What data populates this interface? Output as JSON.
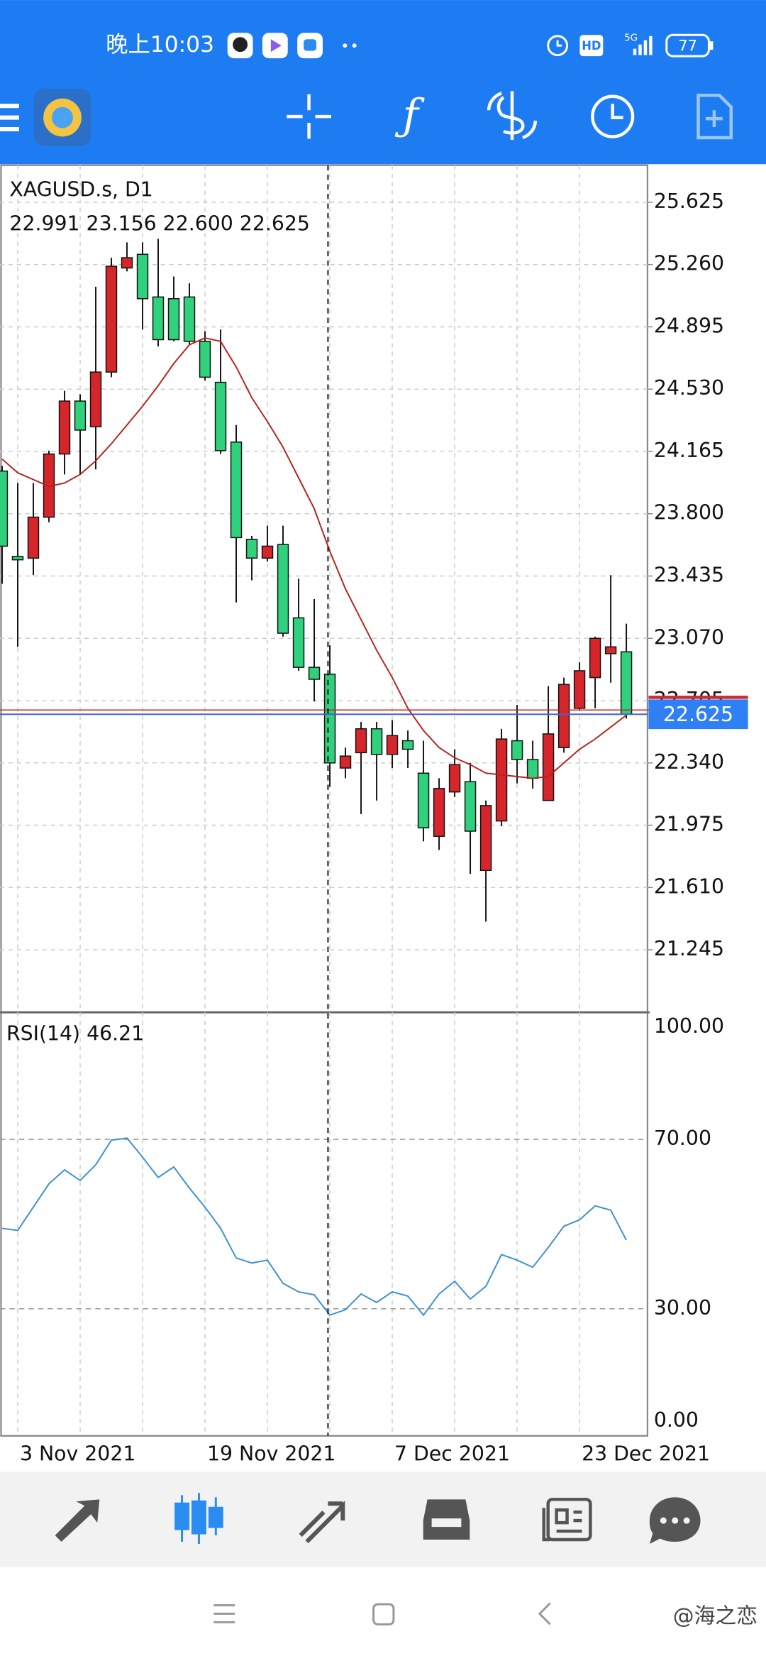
{
  "status_bar": {
    "time": "晚上10:03",
    "network": "5G",
    "battery": "77"
  },
  "chart": {
    "type": "candlestick",
    "symbol": "XAGUSD.s, D1",
    "ohlc_header": "22.991 23.156 22.600 22.625",
    "categories": [
      null,
      "3 Nov 2021",
      null,
      null,
      null,
      null,
      null,
      null,
      null,
      null,
      null,
      null,
      null,
      "19 Nov 2021",
      null,
      null,
      null,
      null,
      null,
      null,
      null,
      null,
      null,
      null,
      null,
      "7 Dec 2021",
      null,
      null,
      null,
      null,
      null,
      null,
      null,
      null,
      null,
      null,
      null,
      "23 Dec 2021",
      null,
      null,
      null
    ],
    "open": [
      24.05,
      23.55,
      23.54,
      23.78,
      24.15,
      24.46,
      24.31,
      24.63,
      25.24,
      25.32,
      25.07,
      25.06,
      25.07,
      24.81,
      24.57,
      24.22,
      23.65,
      23.54,
      23.62,
      23.19,
      22.9,
      22.86,
      22.31,
      22.4,
      22.54,
      22.39,
      22.47,
      22.28,
      21.91,
      22.17,
      22.23,
      21.71,
      22.0,
      22.47,
      22.36,
      22.12,
      22.43,
      22.66,
      22.84,
      22.98,
      22.991
    ],
    "high": [
      24.08,
      23.98,
      23.98,
      24.17,
      24.52,
      24.5,
      25.13,
      25.3,
      25.39,
      25.39,
      25.41,
      25.19,
      25.15,
      24.87,
      24.88,
      24.32,
      23.67,
      23.73,
      23.73,
      23.42,
      23.3,
      23.03,
      22.43,
      22.58,
      22.58,
      22.59,
      22.53,
      22.47,
      22.25,
      22.42,
      22.34,
      22.12,
      22.54,
      22.68,
      22.47,
      22.79,
      22.84,
      22.93,
      23.08,
      23.44,
      23.156
    ],
    "low": [
      23.39,
      23.02,
      23.44,
      23.75,
      24.03,
      24.03,
      24.06,
      24.6,
      25.22,
      24.88,
      24.78,
      24.81,
      24.79,
      24.58,
      24.15,
      23.28,
      23.41,
      23.52,
      23.08,
      22.88,
      22.7,
      22.2,
      22.25,
      22.04,
      22.12,
      22.31,
      22.31,
      21.88,
      21.83,
      22.14,
      21.69,
      21.41,
      21.97,
      22.22,
      22.19,
      22.12,
      22.4,
      22.65,
      22.66,
      22.81,
      22.6
    ],
    "close": [
      23.61,
      23.53,
      23.78,
      24.15,
      24.46,
      24.29,
      24.63,
      25.25,
      25.3,
      25.06,
      24.82,
      24.82,
      24.81,
      24.6,
      24.17,
      23.66,
      23.54,
      23.61,
      23.1,
      22.9,
      22.83,
      22.34,
      22.38,
      22.54,
      22.39,
      22.5,
      22.42,
      21.96,
      22.19,
      22.33,
      21.94,
      22.09,
      22.48,
      22.36,
      22.25,
      22.51,
      22.8,
      22.88,
      23.07,
      23.02,
      22.625
    ],
    "ma": [
      24.12,
      24.04,
      24.0,
      23.96,
      23.98,
      24.03,
      24.11,
      24.21,
      24.32,
      24.43,
      24.55,
      24.68,
      24.79,
      24.83,
      24.81,
      24.66,
      24.48,
      24.34,
      24.19,
      24.01,
      23.83,
      23.58,
      23.36,
      23.18,
      23.0,
      22.84,
      22.66,
      22.53,
      22.43,
      22.37,
      22.33,
      22.28,
      22.27,
      22.26,
      22.25,
      22.26,
      22.34,
      22.42,
      22.48,
      22.55,
      22.62
    ],
    "up_color": "#d7262b",
    "down_color": "#2fd17c",
    "ma_color": "#b5211c",
    "ylim": [
      20.885,
      25.842
    ],
    "yticks": [
      25.625,
      {
        "value": 25.26,
        "label": "25.260"
      },
      24.895,
      {
        "value": 24.53,
        "label": "24.530"
      },
      24.165,
      {
        "value": 23.8,
        "label": "23.800"
      },
      23.435,
      {
        "value": 23.07,
        "label": "23.070"
      },
      22.705,
      {
        "value": 22.34,
        "label": "22.340"
      },
      21.975,
      {
        "value": 21.61,
        "label": "21.610"
      },
      21.245
    ],
    "current_price": 22.625,
    "grid": true
  },
  "rsi": {
    "type": "line",
    "title": "RSI(14) 46.21",
    "color": "#3a8fd0",
    "values": [
      49,
      48.5,
      54,
      59.5,
      62.8,
      60.3,
      64,
      69.8,
      70.3,
      65.8,
      61,
      63.5,
      58.5,
      54,
      49,
      42,
      40.8,
      41.5,
      36,
      34,
      33.3,
      28.5,
      29.8,
      33.5,
      31.5,
      34,
      33,
      28.5,
      33.5,
      36.5,
      32.3,
      35.3,
      42.8,
      41.5,
      39.8,
      44.5,
      49.5,
      51,
      54.3,
      53.3,
      46.21
    ],
    "ylim": [
      0,
      100
    ],
    "yticks": [
      {
        "value": 100,
        "label": "100.00"
      },
      {
        "value": 70,
        "label": "70.00"
      },
      {
        "value": 30,
        "label": "30.00"
      },
      {
        "value": 0,
        "label": "0.00"
      }
    ]
  },
  "watermark": "@海之恋"
}
